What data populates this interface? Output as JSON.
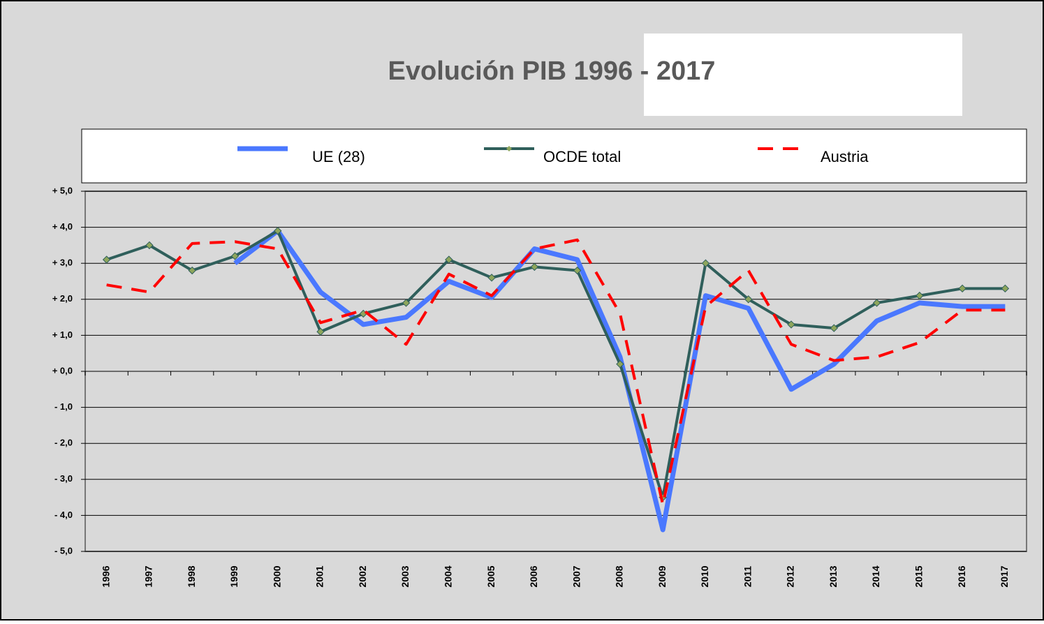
{
  "chart_data": {
    "type": "line",
    "title": "Evolución PIB 1996 - 2017",
    "categories": [
      "1996",
      "1997",
      "1998",
      "1999",
      "2000",
      "2001",
      "2002",
      "2003",
      "2004",
      "2005",
      "2006",
      "2007",
      "2008",
      "2009",
      "2010",
      "2011",
      "2012",
      "2013",
      "2014",
      "2015",
      "2016",
      "2017"
    ],
    "series": [
      {
        "name": "UE (28)",
        "color": "#4a78ff",
        "style": "solid",
        "values": [
          null,
          null,
          null,
          3.0,
          3.9,
          2.2,
          1.3,
          1.5,
          2.5,
          2.05,
          3.4,
          3.1,
          0.4,
          -4.4,
          2.1,
          1.75,
          -0.5,
          0.2,
          1.4,
          1.9,
          1.8,
          1.8
        ]
      },
      {
        "name": "OCDE total",
        "color": "#2f5f5b",
        "style": "markers",
        "values": [
          3.1,
          3.5,
          2.8,
          3.2,
          3.9,
          1.1,
          1.6,
          1.9,
          3.1,
          2.6,
          2.9,
          2.8,
          0.2,
          -3.5,
          3.0,
          2.0,
          1.3,
          1.2,
          1.9,
          2.1,
          2.3,
          2.3
        ]
      },
      {
        "name": "Austria",
        "color": "#ff0000",
        "style": "dashed",
        "values": [
          2.4,
          2.2,
          3.55,
          3.6,
          3.4,
          1.35,
          1.7,
          0.75,
          2.7,
          2.1,
          3.4,
          3.65,
          1.6,
          -3.7,
          1.8,
          2.8,
          0.75,
          0.3,
          0.4,
          0.8,
          1.7,
          1.7
        ]
      }
    ],
    "ylim": [
      -5,
      5
    ],
    "yticks": [
      {
        "value": 5,
        "label": "+ 5,0"
      },
      {
        "value": 4,
        "label": "+ 4,0"
      },
      {
        "value": 3,
        "label": "+ 3,0"
      },
      {
        "value": 2,
        "label": "+ 2,0"
      },
      {
        "value": 1,
        "label": "+ 1,0"
      },
      {
        "value": 0,
        "label": "+ 0,0"
      },
      {
        "value": -1,
        "label": "- 1,0"
      },
      {
        "value": -2,
        "label": "- 2,0"
      },
      {
        "value": -3,
        "label": "- 3,0"
      },
      {
        "value": -4,
        "label": "- 4,0"
      },
      {
        "value": -5,
        "label": "- 5,0"
      }
    ],
    "grid": true,
    "legend": "top"
  }
}
